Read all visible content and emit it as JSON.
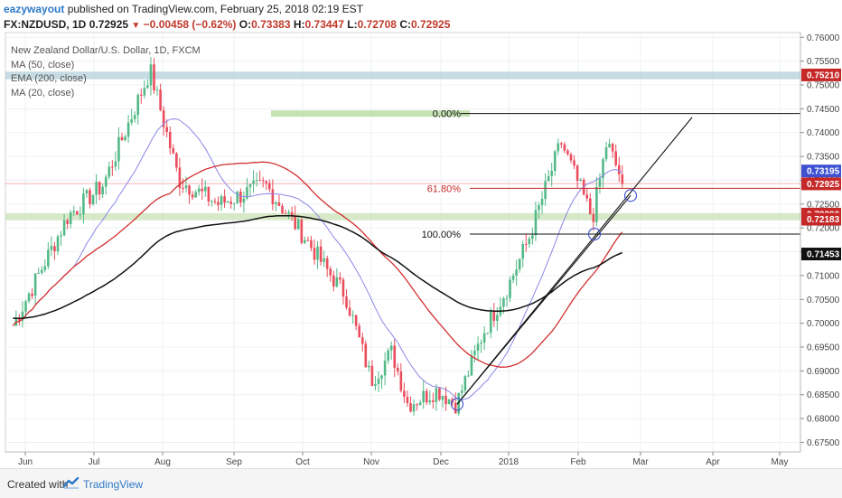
{
  "header": {
    "author": "eazywayout",
    "published_text": "published on TradingView.com, February 25, 2018 02:19 EST",
    "symbol": "FX:NZDUSD, 1D",
    "last": "0.72925",
    "change_arrow": "▼",
    "change": "−0.00458 (−0.62%)",
    "open_label": "O:",
    "open": "0.73383",
    "high_label": "H:",
    "high": "0.73447",
    "low_label": "L:",
    "low": "0.72708",
    "close_label": "C:",
    "close": "0.72925"
  },
  "legend": {
    "title": "New Zealand Dollar/U.S. Dollar, 1D, FXCM",
    "ma50": "MA (50, close)",
    "ema200": "EMA (200, close)",
    "ma20": "MA (20, close)"
  },
  "footer": {
    "created_with": "Created with",
    "brand": "TradingView"
  },
  "colors": {
    "up": "#53b987",
    "down": "#eb4d5c",
    "ma20": "#8b87e6",
    "ma50": "#d32f2f",
    "ema200": "#111111",
    "resistance_zone": "#b3cfd9",
    "support_zone": "#c9e2b5",
    "fib_zone": "#bfe0a8",
    "price_tag_red": "#c62828",
    "price_tag_blue": "#3f51d1",
    "price_tag_dark": "#111111"
  },
  "chart_data": {
    "type": "candlestick",
    "title": "New Zealand Dollar/U.S. Dollar, 1D, FXCM",
    "x_ticks": [
      "Jun",
      "Jul",
      "Aug",
      "Sep",
      "Oct",
      "Nov",
      "Dec",
      "2018",
      "Feb",
      "Mar",
      "Apr",
      "May"
    ],
    "y_ticks": [
      "0.76000",
      "0.75500",
      "0.75000",
      "0.74500",
      "0.74000",
      "0.73500",
      "0.73000",
      "0.72500",
      "0.72000",
      "0.71500",
      "0.71000",
      "0.70500",
      "0.70000",
      "0.69500",
      "0.69000",
      "0.68500",
      "0.68000",
      "0.67500"
    ],
    "ylim": [
      0.673,
      0.761
    ],
    "price_labels": [
      {
        "value": 0.7521,
        "text": "0.75210",
        "style": "red"
      },
      {
        "value": 0.73195,
        "text": "0.73195",
        "style": "blue"
      },
      {
        "value": 0.72925,
        "text": "0.72925",
        "style": "red"
      },
      {
        "value": 0.7229,
        "text": "0.72290",
        "style": "red"
      },
      {
        "value": 0.72183,
        "text": "0.72183",
        "style": "red"
      },
      {
        "value": 0.71453,
        "text": "0.71453",
        "style": "dark"
      }
    ],
    "fibonacci": [
      {
        "label": "0.00%",
        "value": 0.744
      },
      {
        "label": "61.80%",
        "value": 0.7283
      },
      {
        "label": "100.00%",
        "value": 0.7187
      }
    ],
    "zones": [
      {
        "name": "resistance",
        "from": 0.7512,
        "to": 0.7528
      },
      {
        "name": "support",
        "from": 0.7216,
        "to": 0.7231
      }
    ],
    "anchors": [
      {
        "date": "May 26",
        "close": 0.6995
      },
      {
        "date": "Jun 20",
        "close": 0.7225
      },
      {
        "date": "Jul 5",
        "close": 0.729
      },
      {
        "date": "Jul 26",
        "close": 0.753
      },
      {
        "date": "Aug 8",
        "close": 0.73
      },
      {
        "date": "Aug 25",
        "close": 0.725
      },
      {
        "date": "Sep 15",
        "close": 0.729
      },
      {
        "date": "Oct 2",
        "close": 0.718
      },
      {
        "date": "Oct 12",
        "close": 0.711
      },
      {
        "date": "Oct 20",
        "close": 0.706
      },
      {
        "date": "Nov 1",
        "close": 0.688
      },
      {
        "date": "Nov 10",
        "close": 0.694
      },
      {
        "date": "Nov 17",
        "close": 0.683
      },
      {
        "date": "Nov 30",
        "close": 0.686
      },
      {
        "date": "Dec 8",
        "close": 0.683
      },
      {
        "date": "Dec 20",
        "close": 0.698
      },
      {
        "date": "Jan 1",
        "close": 0.708
      },
      {
        "date": "Jan 10",
        "close": 0.718
      },
      {
        "date": "Jan 24",
        "close": 0.738
      },
      {
        "date": "Feb 8",
        "close": 0.722
      },
      {
        "date": "Feb 15",
        "close": 0.738
      },
      {
        "date": "Feb 23",
        "close": 0.7293
      }
    ]
  }
}
